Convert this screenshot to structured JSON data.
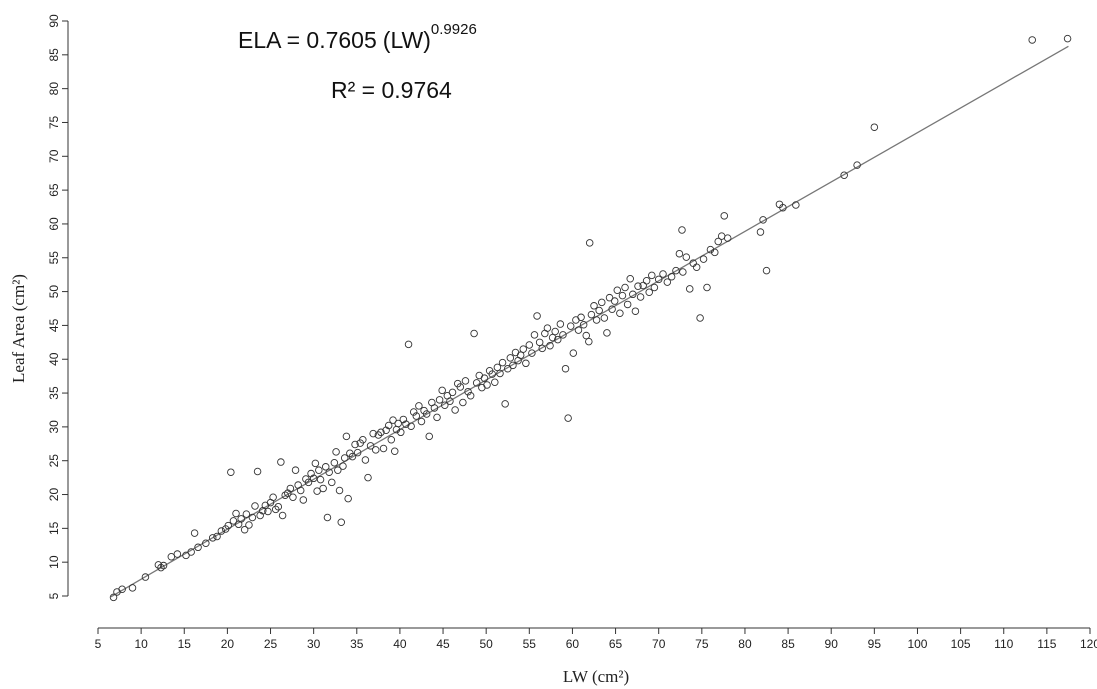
{
  "chart_data": {
    "type": "scatter",
    "title": "",
    "xlabel": "LW (cm²)",
    "ylabel": "Leaf Area (cm²)",
    "xlim": [
      5,
      120
    ],
    "ylim": [
      5,
      90
    ],
    "x_ticks": [
      "5",
      "10",
      "15",
      "20",
      "25",
      "30",
      "35",
      "40",
      "45",
      "50",
      "55",
      "60",
      "65",
      "70",
      "75",
      "80",
      "85",
      "90",
      "95",
      "100",
      "105",
      "110",
      "115",
      "120"
    ],
    "y_ticks": [
      "5",
      "10",
      "15",
      "20",
      "25",
      "30",
      "35",
      "40",
      "45",
      "50",
      "55",
      "60",
      "65",
      "70",
      "75",
      "80",
      "85",
      "90"
    ],
    "grid": false,
    "annotations": {
      "equation_lhs": "ELA = ",
      "equation_coef": "0.7605",
      "equation_base": "(LW)",
      "equation_exp": "0.9926",
      "r2_label": "R² =  0.9764"
    },
    "fit_line": {
      "coef": 0.7605,
      "exp": 0.9926,
      "x_start": 6.5,
      "x_end": 117.5
    },
    "points": [
      [
        6.8,
        4.8
      ],
      [
        7.2,
        5.6
      ],
      [
        7.8,
        6.0
      ],
      [
        9.0,
        6.2
      ],
      [
        10.5,
        7.8
      ],
      [
        12.0,
        9.6
      ],
      [
        12.3,
        9.2
      ],
      [
        12.6,
        9.5
      ],
      [
        13.5,
        10.8
      ],
      [
        14.2,
        11.2
      ],
      [
        15.2,
        11.0
      ],
      [
        15.8,
        11.5
      ],
      [
        16.2,
        14.3
      ],
      [
        16.6,
        12.2
      ],
      [
        17.5,
        12.8
      ],
      [
        18.3,
        13.6
      ],
      [
        18.8,
        13.8
      ],
      [
        19.3,
        14.6
      ],
      [
        19.8,
        14.9
      ],
      [
        20.1,
        15.4
      ],
      [
        20.4,
        23.3
      ],
      [
        20.7,
        16.1
      ],
      [
        21.0,
        17.2
      ],
      [
        21.3,
        15.6
      ],
      [
        21.6,
        16.4
      ],
      [
        22.0,
        14.8
      ],
      [
        22.2,
        17.1
      ],
      [
        22.5,
        15.5
      ],
      [
        22.9,
        16.6
      ],
      [
        23.2,
        18.3
      ],
      [
        23.5,
        23.4
      ],
      [
        23.8,
        16.9
      ],
      [
        24.1,
        17.6
      ],
      [
        24.4,
        18.4
      ],
      [
        24.7,
        17.5
      ],
      [
        25.0,
        18.8
      ],
      [
        25.3,
        19.6
      ],
      [
        25.6,
        17.8
      ],
      [
        25.9,
        18.2
      ],
      [
        26.2,
        24.8
      ],
      [
        26.4,
        16.9
      ],
      [
        26.7,
        19.9
      ],
      [
        27.0,
        20.2
      ],
      [
        27.3,
        20.9
      ],
      [
        27.6,
        19.6
      ],
      [
        27.9,
        23.6
      ],
      [
        28.2,
        21.4
      ],
      [
        28.5,
        20.6
      ],
      [
        28.8,
        19.2
      ],
      [
        29.1,
        22.3
      ],
      [
        29.4,
        21.8
      ],
      [
        29.7,
        23.1
      ],
      [
        30.0,
        22.4
      ],
      [
        30.2,
        24.6
      ],
      [
        30.4,
        20.5
      ],
      [
        30.6,
        23.6
      ],
      [
        30.8,
        22.2
      ],
      [
        31.1,
        20.9
      ],
      [
        31.4,
        24.1
      ],
      [
        31.6,
        16.6
      ],
      [
        31.8,
        23.3
      ],
      [
        32.1,
        21.8
      ],
      [
        32.4,
        24.7
      ],
      [
        32.6,
        26.3
      ],
      [
        32.8,
        23.6
      ],
      [
        33.0,
        20.6
      ],
      [
        33.2,
        15.9
      ],
      [
        33.4,
        24.2
      ],
      [
        33.6,
        25.4
      ],
      [
        33.8,
        28.6
      ],
      [
        34.0,
        19.4
      ],
      [
        34.2,
        26.1
      ],
      [
        34.5,
        25.6
      ],
      [
        34.8,
        27.4
      ],
      [
        35.1,
        26.2
      ],
      [
        35.4,
        27.6
      ],
      [
        35.7,
        28.1
      ],
      [
        36.0,
        25.1
      ],
      [
        36.3,
        22.5
      ],
      [
        36.6,
        27.2
      ],
      [
        36.9,
        29.0
      ],
      [
        37.2,
        26.6
      ],
      [
        37.5,
        28.8
      ],
      [
        37.8,
        29.2
      ],
      [
        38.1,
        26.8
      ],
      [
        38.4,
        29.5
      ],
      [
        38.7,
        30.2
      ],
      [
        39.0,
        28.1
      ],
      [
        39.2,
        31.0
      ],
      [
        39.4,
        26.4
      ],
      [
        39.6,
        29.6
      ],
      [
        39.8,
        30.5
      ],
      [
        40.1,
        29.2
      ],
      [
        40.4,
        31.1
      ],
      [
        40.7,
        30.4
      ],
      [
        41.0,
        42.2
      ],
      [
        41.3,
        30.1
      ],
      [
        41.6,
        32.2
      ],
      [
        41.9,
        31.6
      ],
      [
        42.2,
        33.1
      ],
      [
        42.5,
        30.8
      ],
      [
        42.8,
        32.4
      ],
      [
        43.1,
        31.9
      ],
      [
        43.4,
        28.6
      ],
      [
        43.7,
        33.6
      ],
      [
        44.0,
        32.8
      ],
      [
        44.3,
        31.4
      ],
      [
        44.6,
        34.0
      ],
      [
        44.9,
        35.4
      ],
      [
        45.2,
        33.2
      ],
      [
        45.5,
        34.6
      ],
      [
        45.8,
        33.8
      ],
      [
        46.1,
        35.1
      ],
      [
        46.4,
        32.5
      ],
      [
        46.7,
        36.4
      ],
      [
        47.0,
        35.9
      ],
      [
        47.3,
        33.6
      ],
      [
        47.6,
        36.8
      ],
      [
        47.9,
        35.2
      ],
      [
        48.2,
        34.6
      ],
      [
        48.6,
        43.8
      ],
      [
        48.9,
        36.5
      ],
      [
        49.2,
        37.6
      ],
      [
        49.5,
        35.8
      ],
      [
        49.8,
        37.2
      ],
      [
        50.1,
        36.2
      ],
      [
        50.4,
        38.3
      ],
      [
        50.7,
        37.8
      ],
      [
        51.0,
        36.6
      ],
      [
        51.3,
        38.8
      ],
      [
        51.6,
        37.9
      ],
      [
        51.9,
        39.5
      ],
      [
        52.2,
        33.4
      ],
      [
        52.5,
        38.6
      ],
      [
        52.8,
        40.2
      ],
      [
        53.1,
        39.1
      ],
      [
        53.4,
        41.0
      ],
      [
        53.7,
        39.8
      ],
      [
        54.0,
        40.6
      ],
      [
        54.3,
        41.5
      ],
      [
        54.6,
        39.4
      ],
      [
        55.0,
        42.1
      ],
      [
        55.3,
        40.9
      ],
      [
        55.6,
        43.6
      ],
      [
        55.9,
        46.4
      ],
      [
        56.2,
        42.5
      ],
      [
        56.5,
        41.6
      ],
      [
        56.8,
        43.8
      ],
      [
        57.1,
        44.6
      ],
      [
        57.4,
        42.0
      ],
      [
        57.7,
        43.2
      ],
      [
        58.0,
        44.1
      ],
      [
        58.3,
        42.9
      ],
      [
        58.6,
        45.2
      ],
      [
        58.9,
        43.6
      ],
      [
        59.2,
        38.6
      ],
      [
        59.5,
        31.3
      ],
      [
        59.8,
        44.9
      ],
      [
        60.1,
        40.9
      ],
      [
        60.4,
        45.8
      ],
      [
        60.7,
        44.3
      ],
      [
        61.0,
        46.2
      ],
      [
        61.3,
        45.1
      ],
      [
        61.6,
        43.5
      ],
      [
        61.9,
        42.6
      ],
      [
        62.0,
        57.2
      ],
      [
        62.2,
        46.6
      ],
      [
        62.5,
        47.9
      ],
      [
        62.8,
        45.8
      ],
      [
        63.1,
        47.2
      ],
      [
        63.4,
        48.4
      ],
      [
        63.7,
        46.1
      ],
      [
        64.0,
        43.9
      ],
      [
        64.3,
        49.1
      ],
      [
        64.6,
        47.4
      ],
      [
        64.9,
        48.6
      ],
      [
        65.2,
        50.2
      ],
      [
        65.5,
        46.8
      ],
      [
        65.8,
        49.4
      ],
      [
        66.1,
        50.6
      ],
      [
        66.4,
        48.1
      ],
      [
        66.7,
        51.9
      ],
      [
        67.0,
        49.6
      ],
      [
        67.3,
        47.1
      ],
      [
        67.6,
        50.8
      ],
      [
        67.9,
        49.2
      ],
      [
        68.2,
        50.9
      ],
      [
        68.6,
        51.6
      ],
      [
        68.9,
        49.9
      ],
      [
        69.2,
        52.4
      ],
      [
        69.5,
        50.6
      ],
      [
        70.0,
        51.8
      ],
      [
        70.5,
        52.6
      ],
      [
        71.0,
        51.4
      ],
      [
        71.5,
        52.2
      ],
      [
        72.0,
        53.1
      ],
      [
        72.4,
        55.6
      ],
      [
        72.8,
        52.9
      ],
      [
        73.2,
        55.1
      ],
      [
        73.6,
        50.4
      ],
      [
        74.0,
        54.2
      ],
      [
        74.4,
        53.6
      ],
      [
        74.8,
        46.1
      ],
      [
        75.2,
        54.8
      ],
      [
        75.6,
        50.6
      ],
      [
        76.0,
        56.2
      ],
      [
        76.5,
        55.8
      ],
      [
        76.9,
        57.4
      ],
      [
        77.3,
        58.2
      ],
      [
        77.6,
        61.2
      ],
      [
        78.0,
        57.9
      ],
      [
        72.7,
        59.1
      ],
      [
        81.8,
        58.8
      ],
      [
        82.1,
        60.6
      ],
      [
        82.5,
        53.1
      ],
      [
        84.0,
        62.9
      ],
      [
        84.4,
        62.4
      ],
      [
        85.9,
        62.8
      ],
      [
        91.5,
        67.2
      ],
      [
        93.0,
        68.7
      ],
      [
        95.0,
        74.3
      ],
      [
        113.3,
        87.2
      ],
      [
        117.4,
        87.4
      ]
    ]
  }
}
